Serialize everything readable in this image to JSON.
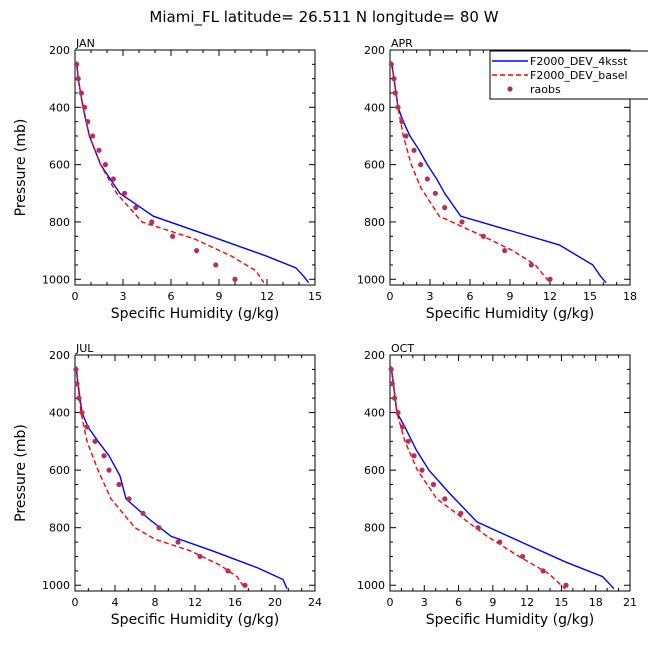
{
  "title": "Miami_FL  latitude= 26.511 N longitude= 80 W",
  "legend": {
    "placement": "top-right",
    "entries": [
      {
        "label": "F2000_DEV_4ksst",
        "color": "#0000ff",
        "style": "solid"
      },
      {
        "label": "F2000_DEV_basel",
        "color": "#ff0000",
        "style": "dashed"
      },
      {
        "label": "raobs",
        "color": "#b03060",
        "style": "dots"
      }
    ]
  },
  "chart_data": [
    {
      "type": "line",
      "panel": "JAN",
      "xlabel": "Specific Humidity (g/kg)",
      "ylabel": "Pressure (mb)",
      "xlim": [
        0,
        15
      ],
      "ylim": [
        1020,
        200
      ],
      "xticks": [
        "0",
        "3",
        "6",
        "9",
        "12",
        "15"
      ],
      "yticks": [
        "200",
        "400",
        "600",
        "800",
        "1000"
      ],
      "series": [
        {
          "name": "F2000_DEV_4ksst",
          "color": "#0000ff",
          "dash": false,
          "points": [
            [
              0.1,
              240
            ],
            [
              0.2,
              300
            ],
            [
              0.5,
              400
            ],
            [
              0.9,
              500
            ],
            [
              1.6,
              600
            ],
            [
              2.8,
              700
            ],
            [
              4.9,
              780
            ],
            [
              8.5,
              850
            ],
            [
              12,
              920
            ],
            [
              13.8,
              960
            ],
            [
              14.3,
              990
            ],
            [
              14.6,
              1012
            ]
          ]
        },
        {
          "name": "F2000_DEV_basel",
          "color": "#ff0000",
          "dash": true,
          "points": [
            [
              0.1,
              240
            ],
            [
              0.2,
              300
            ],
            [
              0.5,
              400
            ],
            [
              0.9,
              500
            ],
            [
              1.6,
              600
            ],
            [
              2.6,
              700
            ],
            [
              4.2,
              800
            ],
            [
              7.5,
              860
            ],
            [
              9.8,
              920
            ],
            [
              11.3,
              970
            ],
            [
              11.8,
              1012
            ]
          ]
        },
        {
          "name": "raobs",
          "color": "#b03060",
          "dots": true,
          "points": [
            [
              0.1,
              250
            ],
            [
              0.2,
              300
            ],
            [
              0.4,
              350
            ],
            [
              0.6,
              400
            ],
            [
              0.8,
              450
            ],
            [
              1.1,
              500
            ],
            [
              1.5,
              550
            ],
            [
              1.9,
              600
            ],
            [
              2.4,
              650
            ],
            [
              3.1,
              700
            ],
            [
              3.8,
              750
            ],
            [
              4.8,
              800
            ],
            [
              6.1,
              850
            ],
            [
              7.6,
              900
            ],
            [
              8.8,
              950
            ],
            [
              10,
              1000
            ]
          ]
        }
      ]
    },
    {
      "type": "line",
      "panel": "APR",
      "xlabel": "Specific Humidity (g/kg)",
      "ylabel": "Pressure (mb)",
      "xlim": [
        0,
        18
      ],
      "ylim": [
        1020,
        200
      ],
      "xticks": [
        "0",
        "3",
        "6",
        "9",
        "12",
        "15",
        "18"
      ],
      "yticks": [
        "200",
        "400",
        "600",
        "800",
        "1000"
      ],
      "series": [
        {
          "name": "F2000_DEV_4ksst",
          "color": "#0000ff",
          "dash": false,
          "points": [
            [
              0.1,
              240
            ],
            [
              0.3,
              300
            ],
            [
              0.6,
              400
            ],
            [
              1,
              450
            ],
            [
              1.5,
              500
            ],
            [
              2.2,
              550
            ],
            [
              2.8,
              600
            ],
            [
              3.5,
              650
            ],
            [
              4.1,
              700
            ],
            [
              5.3,
              780
            ],
            [
              9,
              830
            ],
            [
              12.7,
              880
            ],
            [
              15.2,
              950
            ],
            [
              15.8,
              990
            ],
            [
              16.2,
              1012
            ]
          ]
        },
        {
          "name": "F2000_DEV_basel",
          "color": "#ff0000",
          "dash": true,
          "points": [
            [
              0.1,
              240
            ],
            [
              0.3,
              300
            ],
            [
              0.6,
              400
            ],
            [
              1,
              500
            ],
            [
              1.6,
              600
            ],
            [
              2.3,
              680
            ],
            [
              3.7,
              780
            ],
            [
              7,
              850
            ],
            [
              9.2,
              900
            ],
            [
              10.9,
              950
            ],
            [
              11.6,
              990
            ],
            [
              12,
              1012
            ]
          ]
        },
        {
          "name": "raobs",
          "color": "#b03060",
          "dots": true,
          "points": [
            [
              0.1,
              250
            ],
            [
              0.3,
              300
            ],
            [
              0.4,
              350
            ],
            [
              0.6,
              400
            ],
            [
              0.9,
              450
            ],
            [
              1.2,
              500
            ],
            [
              1.8,
              550
            ],
            [
              2.3,
              600
            ],
            [
              2.8,
              650
            ],
            [
              3.4,
              700
            ],
            [
              4.1,
              750
            ],
            [
              5.4,
              800
            ],
            [
              7,
              850
            ],
            [
              8.6,
              900
            ],
            [
              10.6,
              950
            ],
            [
              12,
              1000
            ]
          ]
        }
      ]
    },
    {
      "type": "line",
      "panel": "JUL",
      "xlabel": "Specific Humidity (g/kg)",
      "ylabel": "Pressure (mb)",
      "xlim": [
        0,
        24
      ],
      "ylim": [
        1020,
        200
      ],
      "xticks": [
        "0",
        "4",
        "8",
        "12",
        "16",
        "20",
        "24"
      ],
      "yticks": [
        "200",
        "400",
        "600",
        "800",
        "1000"
      ],
      "series": [
        {
          "name": "F2000_DEV_4ksst",
          "color": "#0000ff",
          "dash": false,
          "points": [
            [
              0.1,
              240
            ],
            [
              0.3,
              300
            ],
            [
              0.7,
              400
            ],
            [
              1.3,
              450
            ],
            [
              2.3,
              500
            ],
            [
              3.4,
              550
            ],
            [
              4.5,
              620
            ],
            [
              5.1,
              700
            ],
            [
              7.4,
              770
            ],
            [
              9.6,
              830
            ],
            [
              13.7,
              880
            ],
            [
              18.3,
              940
            ],
            [
              20.8,
              980
            ],
            [
              21.2,
              1012
            ]
          ]
        },
        {
          "name": "F2000_DEV_basel",
          "color": "#ff0000",
          "dash": true,
          "points": [
            [
              0.1,
              240
            ],
            [
              0.3,
              300
            ],
            [
              0.6,
              400
            ],
            [
              1.2,
              500
            ],
            [
              2.3,
              600
            ],
            [
              3.6,
              700
            ],
            [
              6,
              800
            ],
            [
              8,
              840
            ],
            [
              11.5,
              880
            ],
            [
              14.5,
              930
            ],
            [
              16.2,
              970
            ],
            [
              17,
              1012
            ]
          ]
        },
        {
          "name": "raobs",
          "color": "#b03060",
          "dots": true,
          "points": [
            [
              0.1,
              250
            ],
            [
              0.2,
              300
            ],
            [
              0.4,
              350
            ],
            [
              0.7,
              400
            ],
            [
              1.2,
              450
            ],
            [
              2,
              500
            ],
            [
              2.9,
              550
            ],
            [
              3.4,
              600
            ],
            [
              4.4,
              650
            ],
            [
              5.4,
              700
            ],
            [
              6.8,
              750
            ],
            [
              8.4,
              800
            ],
            [
              10.3,
              850
            ],
            [
              12.5,
              900
            ],
            [
              15.3,
              950
            ],
            [
              17,
              1000
            ]
          ]
        }
      ]
    },
    {
      "type": "line",
      "panel": "OCT",
      "xlabel": "Specific Humidity (g/kg)",
      "ylabel": "Pressure (mb)",
      "xlim": [
        0,
        21
      ],
      "ylim": [
        1020,
        200
      ],
      "xticks": [
        "0",
        "3",
        "6",
        "9",
        "12",
        "15",
        "18",
        "21"
      ],
      "yticks": [
        "200",
        "400",
        "600",
        "800",
        "1000"
      ],
      "series": [
        {
          "name": "F2000_DEV_4ksst",
          "color": "#0000ff",
          "dash": false,
          "points": [
            [
              0.1,
              240
            ],
            [
              0.3,
              300
            ],
            [
              0.6,
              400
            ],
            [
              1.3,
              450
            ],
            [
              2.3,
              530
            ],
            [
              3.4,
              600
            ],
            [
              5.2,
              680
            ],
            [
              7.6,
              780
            ],
            [
              11.5,
              850
            ],
            [
              15.4,
              920
            ],
            [
              18.6,
              970
            ],
            [
              19.6,
              1012
            ]
          ]
        },
        {
          "name": "F2000_DEV_basel",
          "color": "#ff0000",
          "dash": true,
          "points": [
            [
              0.1,
              240
            ],
            [
              0.3,
              300
            ],
            [
              0.6,
              400
            ],
            [
              1.3,
              500
            ],
            [
              2.4,
              600
            ],
            [
              4.1,
              700
            ],
            [
              5.8,
              750
            ],
            [
              8.5,
              830
            ],
            [
              11.3,
              900
            ],
            [
              13.9,
              960
            ],
            [
              15.3,
              1012
            ]
          ]
        },
        {
          "name": "raobs",
          "color": "#b03060",
          "dots": true,
          "points": [
            [
              0.1,
              250
            ],
            [
              0.2,
              300
            ],
            [
              0.4,
              350
            ],
            [
              0.7,
              400
            ],
            [
              1.1,
              450
            ],
            [
              1.6,
              500
            ],
            [
              2.1,
              550
            ],
            [
              2.8,
              600
            ],
            [
              3.8,
              650
            ],
            [
              4.8,
              700
            ],
            [
              6.2,
              750
            ],
            [
              7.7,
              800
            ],
            [
              9.6,
              850
            ],
            [
              11.6,
              900
            ],
            [
              13.4,
              950
            ],
            [
              15.4,
              1000
            ]
          ]
        }
      ]
    }
  ]
}
